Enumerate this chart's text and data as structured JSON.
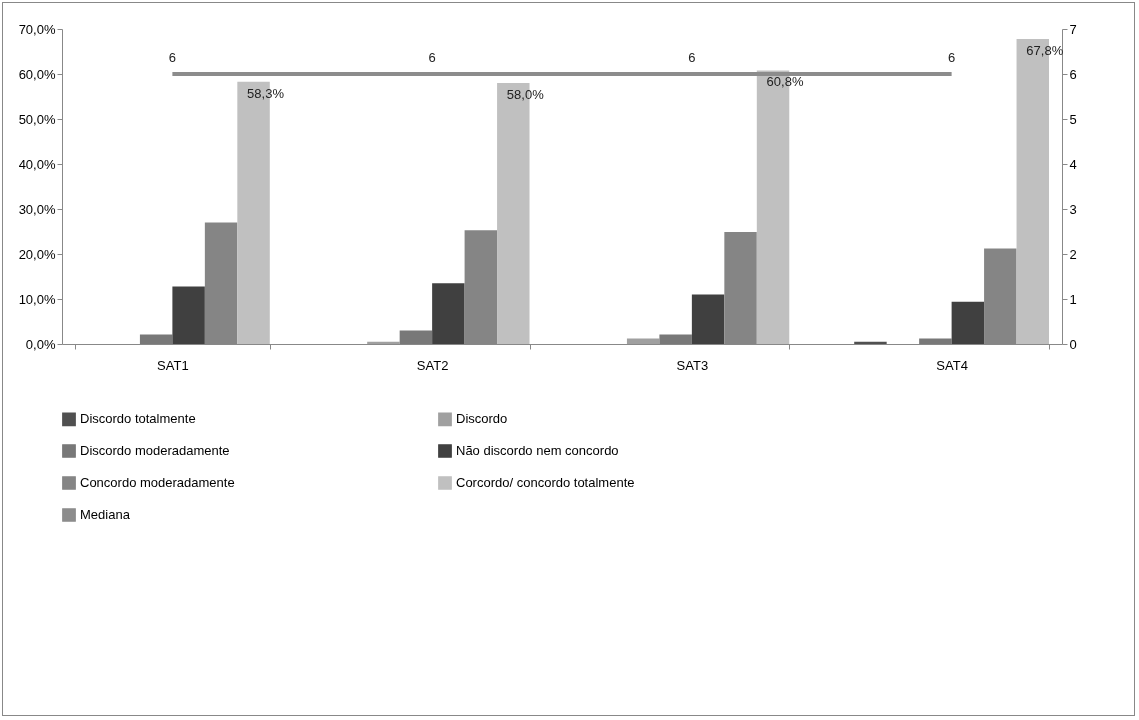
{
  "chart_data": {
    "type": "bar",
    "categories": [
      "SAT1",
      "SAT2",
      "SAT3",
      "SAT4"
    ],
    "series": [
      {
        "name": "Discordo totalmente",
        "color": "#505050",
        "values": [
          0,
          0,
          0,
          0.5
        ]
      },
      {
        "name": "Discordo",
        "color": "#a0a0a0",
        "values": [
          0,
          0.5,
          1.2,
          0
        ]
      },
      {
        "name": "Discordo moderadamente",
        "color": "#787878",
        "values": [
          2.1,
          3.0,
          2.1,
          1.2
        ]
      },
      {
        "name": "Não discordo nem concordo",
        "color": "#404040",
        "values": [
          12.8,
          13.5,
          11.0,
          9.4
        ]
      },
      {
        "name": "Concordo moderadamente",
        "color": "#858585",
        "values": [
          27.0,
          25.3,
          24.9,
          21.2
        ]
      },
      {
        "name": "Corcordo/ concordo totalmente",
        "color": "#c0c0c0",
        "values": [
          58.3,
          58.0,
          60.8,
          67.8
        ],
        "value_labels": [
          "58,3%",
          "58,0%",
          "60,8%",
          "67,8%"
        ]
      },
      {
        "name": "Mediana",
        "type": "line",
        "axis": "y2",
        "color": "#8c8c8c",
        "values": [
          6,
          6,
          6,
          6
        ],
        "value_labels": [
          "6",
          "6",
          "6",
          "6"
        ],
        "marker": "none",
        "line_style": "solid"
      }
    ],
    "ylim": [
      0,
      70
    ],
    "yticks": [
      {
        "value": 0,
        "label": "0,0%"
      },
      {
        "value": 10,
        "label": "10,0%"
      },
      {
        "value": 20,
        "label": "20,0%"
      },
      {
        "value": 30,
        "label": "30,0%"
      },
      {
        "value": 40,
        "label": "40,0%"
      },
      {
        "value": 50,
        "label": "50,0%"
      },
      {
        "value": 60,
        "label": "60,0%"
      },
      {
        "value": 70,
        "label": "70,0%"
      }
    ],
    "y2lim": [
      0,
      7
    ],
    "y2ticks": [
      0,
      1,
      2,
      3,
      4,
      5,
      6,
      7
    ],
    "grid": false,
    "legend": "bottom"
  }
}
